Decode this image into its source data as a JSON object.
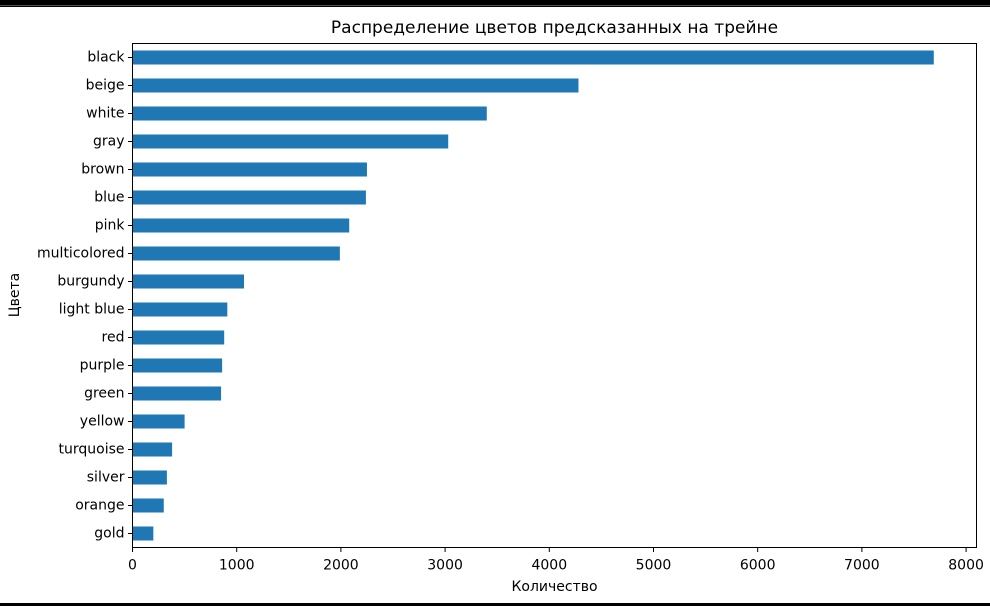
{
  "chart_data": {
    "type": "bar",
    "orientation": "horizontal",
    "title": "Распределение цветов предсказанных на трейне",
    "xlabel": "Количество",
    "ylabel": "Цвета",
    "xlim": [
      0,
      8100
    ],
    "xticks": [
      0,
      1000,
      2000,
      3000,
      4000,
      5000,
      6000,
      7000,
      8000
    ],
    "grid": false,
    "legend": "none",
    "bar_color": "#1f77b4",
    "categories": [
      "black",
      "beige",
      "white",
      "gray",
      "brown",
      "blue",
      "pink",
      "multicolored",
      "burgundy",
      "light blue",
      "red",
      "purple",
      "green",
      "yellow",
      "turquoise",
      "silver",
      "orange",
      "gold"
    ],
    "values": [
      7690,
      4280,
      3400,
      3030,
      2250,
      2240,
      2080,
      1990,
      1070,
      910,
      880,
      860,
      850,
      500,
      380,
      330,
      300,
      200
    ]
  }
}
